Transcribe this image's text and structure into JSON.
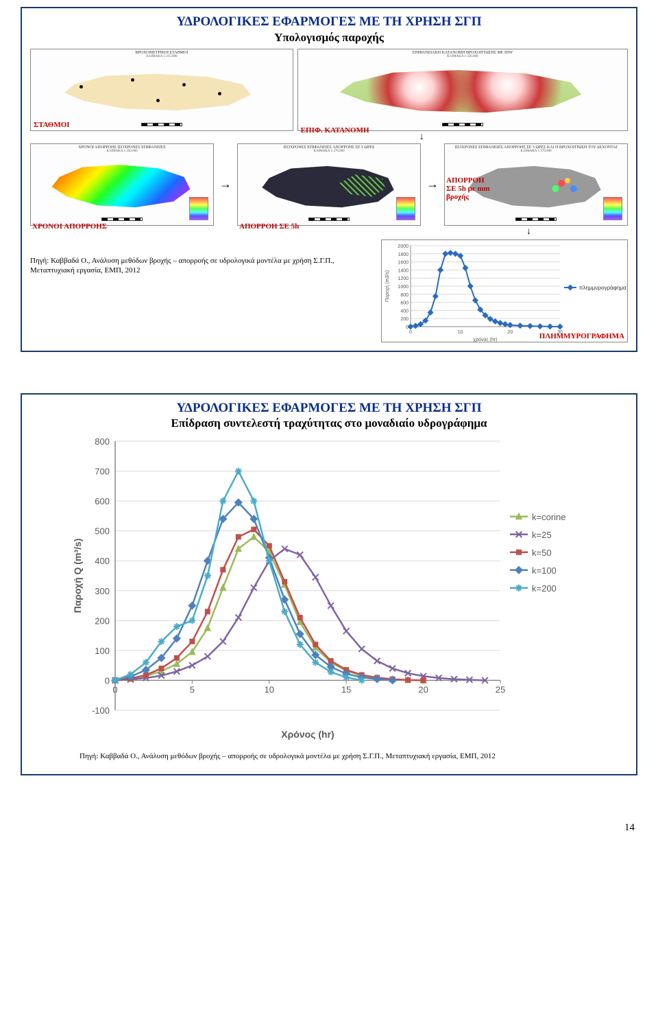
{
  "page_number": "14",
  "slide1": {
    "title": "ΥΔΡΟΛΟΓΙΚΕΣ ΕΦΑΡΜΟΓΕΣ ΜΕ ΤΗ ΧΡΗΣΗ ΣΓΠ",
    "subtitle": "Υπολογισμός παροχής",
    "labels": {
      "stations": "ΣΤΑΘΜΟΙ",
      "surface_dist": "ΕΠΙΦ. ΚΑΤΑΝΟΜΗ",
      "runoff_times": "ΧΡΟΝΟΙ ΑΠΟΡΡΟΗΣ",
      "runoff_5h": "ΑΠΟΡΡΟΗ ΣΕ 5h",
      "runoff_5h_mm": "ΑΠΟΡΡΟΗ ΣΕ 5h με mm βροχής",
      "hydrograph_caption": "ΠΛΗΜΜΥΡΟΓΡΑΦΗΜΑ"
    },
    "map_headers": {
      "m1": "ΒΡΟΧΟΜΕΤΡΙΚΟΙ ΣΤΑΘΜΟΙ",
      "m2": "ΕΠΙΦΑΝΕΙΑΚΗ ΚΑΤΑΝΟΜΗ ΒΡΟΧΟΠΤΩΣΗΣ ΜΕ IDW",
      "m3": "ΧΡΟΝΟΙ ΑΠΟΡΡΟΗΣ ΙΣΟΧΡΟΝΕΣ ΕΠΙΦΑΝΕΙΕΣ",
      "m4": "ΙΣΟΧΡΟΝΕΣ ΕΠΙΦΑΝΕΙΕΣ ΑΠΟΡΡΟΗΣ ΣΕ 5 ΩΡΕΣ",
      "m5": "ΙΣΟΧΡΟΝΕΣ ΕΠΙΦΑΝΕΙΕΣ ΑΠΟΡΡΟΗΣ ΣΕ 5 ΩΡΕΣ ΚΑΙ Η ΒΡΟΧΟΠΤΩΣΗ ΤΟΥ ΔΕΧΟΝΤΑΙ",
      "scale_a": "ΚΛΙΜΑΚΑ 1:315.000",
      "scale_b": "ΚΛΙΜΑΚΑ 1:350.000",
      "scale_c": "ΚΛΙΜΑΚΑ 1:370.000"
    },
    "hydro_chart": {
      "legend_label": "πλημμυρογράφημα",
      "xlabel": "χρόνος (hr)",
      "ylabel": "Παροχή (m3/s)",
      "y_ticks": [
        0,
        200,
        400,
        600,
        800,
        1000,
        1200,
        1400,
        1600,
        1800,
        2000
      ],
      "x_ticks": [
        0,
        10,
        20,
        30
      ],
      "xlim": [
        0,
        30
      ],
      "ylim": [
        0,
        2000
      ],
      "line_color": "#2a6bbf",
      "marker_color": "#2a6bbf",
      "grid_color": "#d9d9d9",
      "background": "#ffffff",
      "data_x": [
        0,
        1,
        2,
        3,
        4,
        5,
        6,
        7,
        8,
        9,
        10,
        11,
        12,
        13,
        14,
        15,
        16,
        17,
        18,
        19,
        20,
        22,
        24,
        26,
        28,
        30
      ],
      "data_y": [
        0,
        20,
        60,
        150,
        350,
        750,
        1400,
        1800,
        1820,
        1800,
        1750,
        1450,
        1000,
        650,
        420,
        280,
        190,
        130,
        90,
        60,
        40,
        25,
        15,
        8,
        3,
        0
      ]
    },
    "source": "Πηγή: Καββαδά Ο., Ανάλυση μεθόδων βροχής – απορροής σε υδρολογικά μοντέλα με χρήση Σ.Γ.Π., Μεταπτυχιακή εργασία, ΕΜΠ, 2012"
  },
  "slide2": {
    "title": "ΥΔΡΟΛΟΓΙΚΕΣ ΕΦΑΡΜΟΓΕΣ ΜΕ ΤΗ ΧΡΗΣΗ ΣΓΠ",
    "subtitle": "Επίδραση συντελεστή τραχύτητας στο μοναδιαίο υδρογράφημα",
    "chart": {
      "xlabel": "Χρόνος (hr)",
      "ylabel": "Παροχή Q (m³/s)",
      "xlim": [
        0,
        25
      ],
      "ylim": [
        -100,
        800
      ],
      "x_ticks": [
        0,
        5,
        10,
        15,
        20,
        25
      ],
      "y_ticks": [
        -100,
        0,
        100,
        200,
        300,
        400,
        500,
        600,
        700,
        800
      ],
      "axis_color": "#808080",
      "grid_color": "#d9d9d9",
      "background": "#ffffff",
      "tick_fontsize": 13,
      "label_fontsize": 14,
      "line_width": 2.5,
      "marker_size": 7,
      "series": [
        {
          "name": "k=corine",
          "color": "#9bbb59",
          "marker": "triangle",
          "x": [
            0,
            1,
            2,
            3,
            4,
            5,
            6,
            7,
            8,
            9,
            10,
            11,
            12,
            13,
            14,
            15,
            16,
            17,
            18,
            19,
            20
          ],
          "y": [
            0,
            5,
            15,
            30,
            55,
            95,
            175,
            310,
            440,
            480,
            430,
            320,
            195,
            110,
            60,
            32,
            16,
            8,
            4,
            1,
            0
          ]
        },
        {
          "name": "k=25",
          "color": "#8064a2",
          "marker": "x",
          "x": [
            0,
            1,
            2,
            3,
            4,
            5,
            6,
            7,
            8,
            9,
            10,
            11,
            12,
            13,
            14,
            15,
            16,
            17,
            18,
            19,
            20,
            21,
            22,
            23,
            24
          ],
          "y": [
            0,
            3,
            8,
            16,
            30,
            50,
            80,
            130,
            210,
            310,
            400,
            440,
            420,
            345,
            250,
            165,
            105,
            65,
            40,
            24,
            14,
            8,
            4,
            2,
            0
          ]
        },
        {
          "name": "k=50",
          "color": "#c0504d",
          "marker": "square",
          "x": [
            0,
            1,
            2,
            3,
            4,
            5,
            6,
            7,
            8,
            9,
            10,
            11,
            12,
            13,
            14,
            15,
            16,
            17,
            18,
            19,
            20
          ],
          "y": [
            0,
            6,
            18,
            40,
            75,
            130,
            230,
            370,
            480,
            505,
            450,
            330,
            210,
            120,
            65,
            35,
            18,
            9,
            4,
            1,
            0
          ]
        },
        {
          "name": "k=100",
          "color": "#4f81bd",
          "marker": "diamond",
          "x": [
            0,
            1,
            2,
            3,
            4,
            5,
            6,
            7,
            8,
            9,
            10,
            11,
            12,
            13,
            14,
            15,
            16,
            17,
            18
          ],
          "y": [
            0,
            12,
            35,
            75,
            140,
            250,
            400,
            540,
            595,
            540,
            410,
            270,
            155,
            85,
            45,
            22,
            10,
            4,
            0
          ]
        },
        {
          "name": "k=200",
          "color": "#4bacc6",
          "marker": "star",
          "x": [
            0,
            1,
            2,
            3,
            4,
            5,
            6,
            7,
            8,
            9,
            10,
            11,
            12,
            13,
            14,
            15,
            16
          ],
          "y": [
            0,
            20,
            60,
            130,
            180,
            200,
            350,
            600,
            700,
            600,
            400,
            230,
            120,
            60,
            28,
            10,
            0
          ]
        }
      ]
    },
    "source": "Πηγή: Καββαδά Ο., Ανάλυση μεθόδων βροχής – απορροής σε υδρολογικά μοντέλα με χρήση Σ.Γ.Π., Μεταπτυχιακή εργασία, ΕΜΠ, 2012"
  }
}
